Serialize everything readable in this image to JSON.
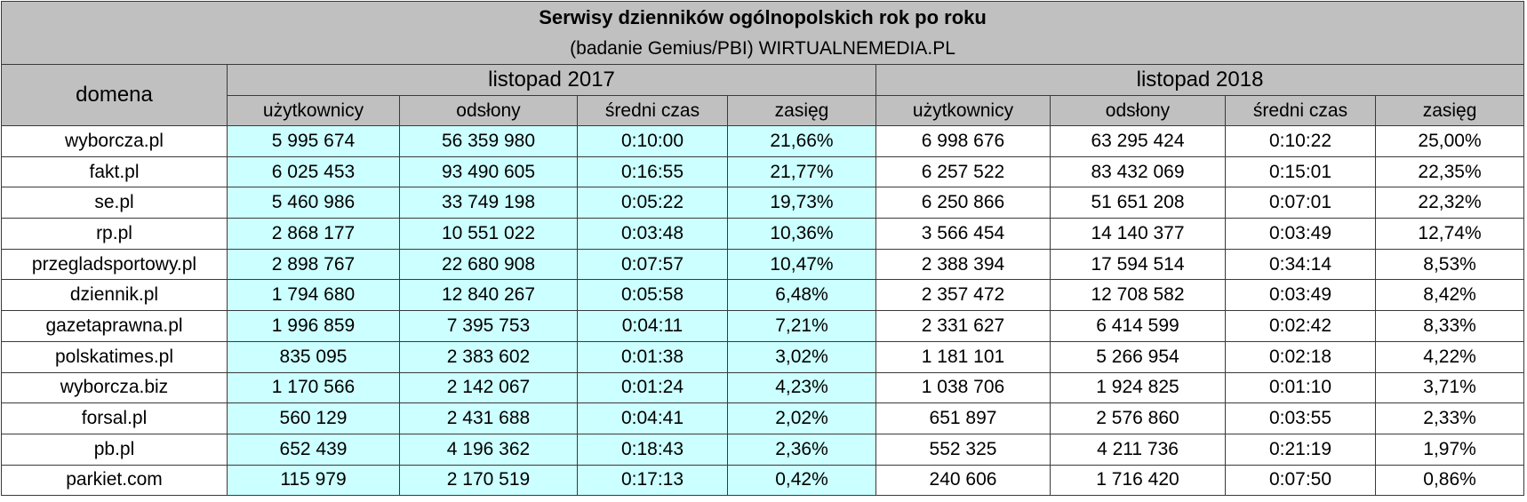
{
  "chart_data": {
    "type": "table",
    "title": "Serwisy dzienników ogólnopolskich rok po roku",
    "subtitle": "(badanie Gemius/PBI) WIRTUALNEMEDIA.PL",
    "first_header": "domena",
    "periods": [
      "listopad 2017",
      "listopad 2018"
    ],
    "columns": [
      "użytkownicy",
      "odsłony",
      "średni czas",
      "zasięg"
    ],
    "rows": [
      {
        "domain": "wyborcza.pl",
        "y2017": [
          "5 995 674",
          "56 359 980",
          "0:10:00",
          "21,66%"
        ],
        "y2018": [
          "6 998 676",
          "63 295 424",
          "0:10:22",
          "25,00%"
        ]
      },
      {
        "domain": "fakt.pl",
        "y2017": [
          "6 025 453",
          "93 490 605",
          "0:16:55",
          "21,77%"
        ],
        "y2018": [
          "6 257 522",
          "83 432 069",
          "0:15:01",
          "22,35%"
        ]
      },
      {
        "domain": "se.pl",
        "y2017": [
          "5 460 986",
          "33 749 198",
          "0:05:22",
          "19,73%"
        ],
        "y2018": [
          "6 250 866",
          "51 651 208",
          "0:07:01",
          "22,32%"
        ]
      },
      {
        "domain": "rp.pl",
        "y2017": [
          "2 868 177",
          "10 551 022",
          "0:03:48",
          "10,36%"
        ],
        "y2018": [
          "3 566 454",
          "14 140 377",
          "0:03:49",
          "12,74%"
        ]
      },
      {
        "domain": "przegladsportowy.pl",
        "y2017": [
          "2 898 767",
          "22 680 908",
          "0:07:57",
          "10,47%"
        ],
        "y2018": [
          "2 388 394",
          "17 594 514",
          "0:34:14",
          "8,53%"
        ]
      },
      {
        "domain": "dziennik.pl",
        "y2017": [
          "1 794 680",
          "12 840 267",
          "0:05:58",
          "6,48%"
        ],
        "y2018": [
          "2 357 472",
          "12 708 582",
          "0:03:49",
          "8,42%"
        ]
      },
      {
        "domain": "gazetaprawna.pl",
        "y2017": [
          "1 996 859",
          "7 395 753",
          "0:04:11",
          "7,21%"
        ],
        "y2018": [
          "2 331 627",
          "6 414 599",
          "0:02:42",
          "8,33%"
        ]
      },
      {
        "domain": "polskatimes.pl",
        "y2017": [
          "835 095",
          "2 383 602",
          "0:01:38",
          "3,02%"
        ],
        "y2018": [
          "1 181 101",
          "5 266 954",
          "0:02:18",
          "4,22%"
        ]
      },
      {
        "domain": "wyborcza.biz",
        "y2017": [
          "1 170 566",
          "2 142 067",
          "0:01:24",
          "4,23%"
        ],
        "y2018": [
          "1 038 706",
          "1 924 825",
          "0:01:10",
          "3,71%"
        ]
      },
      {
        "domain": "forsal.pl",
        "y2017": [
          "560 129",
          "2 431 688",
          "0:04:41",
          "2,02%"
        ],
        "y2018": [
          "651 897",
          "2 576 860",
          "0:03:55",
          "2,33%"
        ]
      },
      {
        "domain": "pb.pl",
        "y2017": [
          "652 439",
          "4 196 362",
          "0:18:43",
          "2,36%"
        ],
        "y2018": [
          "552 325",
          "4 211 736",
          "0:21:19",
          "1,97%"
        ]
      },
      {
        "domain": "parkiet.com",
        "y2017": [
          "115 979",
          "2 170 519",
          "0:17:13",
          "0,42%"
        ],
        "y2018": [
          "240 606",
          "1 716 420",
          "0:07:50",
          "0,86%"
        ]
      }
    ],
    "colors": {
      "header_bg": "#c0c0c0",
      "y2017_bg": "#ccffff",
      "y2018_bg": "#ffffff",
      "border": "#3a3a3a"
    }
  }
}
